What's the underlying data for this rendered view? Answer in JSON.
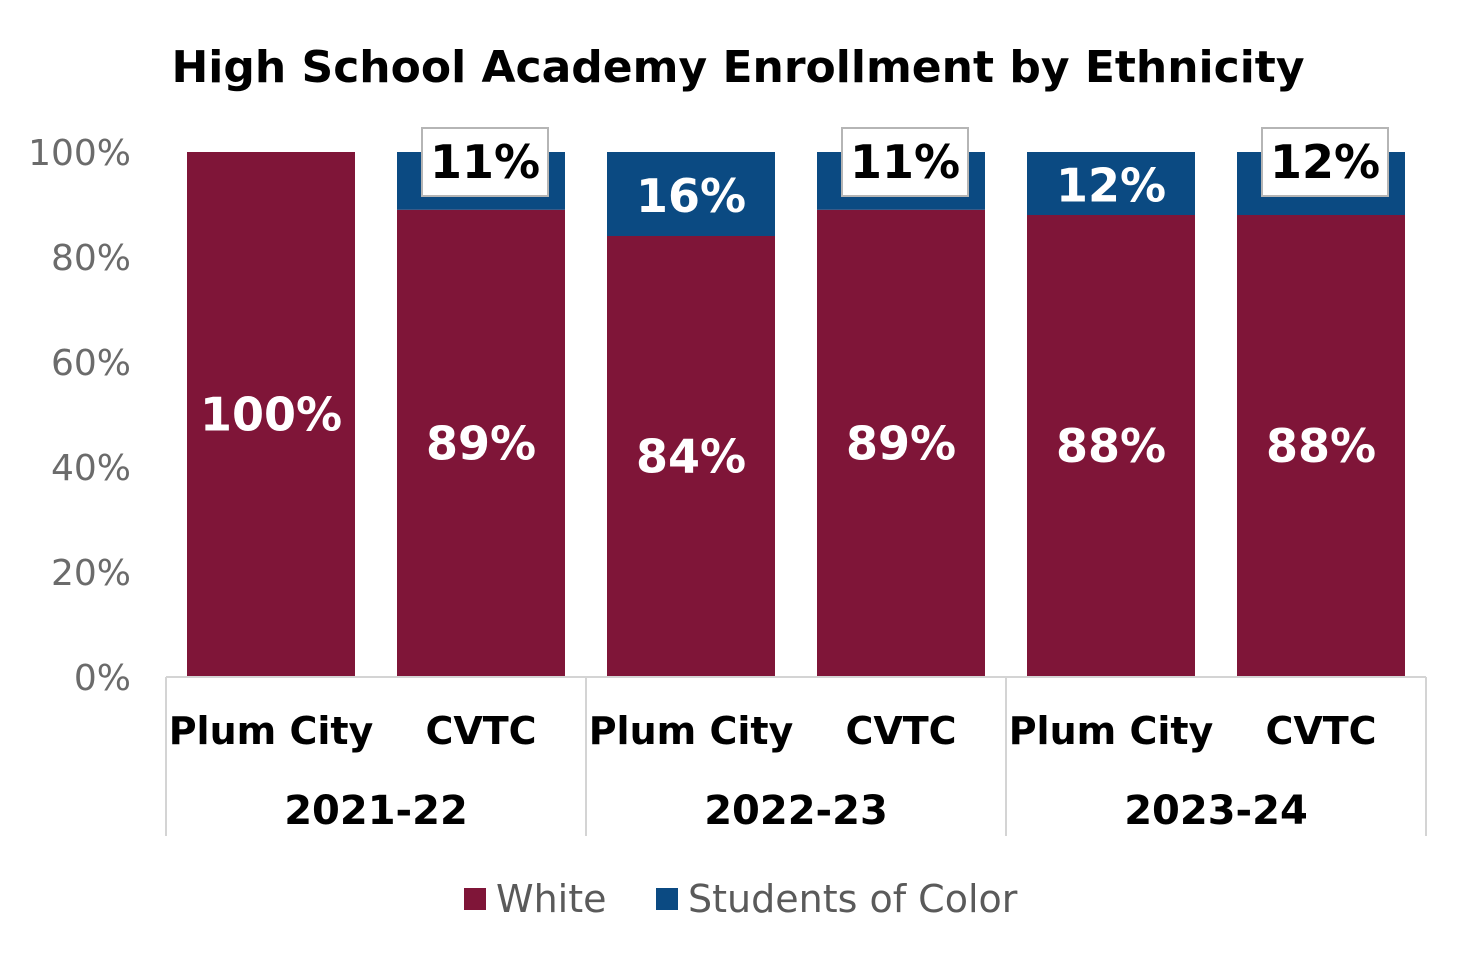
{
  "chart_data": {
    "type": "bar",
    "stacked": true,
    "percent": true,
    "title": "High School Academy Enrollment by Ethnicity",
    "xlabel": "",
    "ylabel": "",
    "ylim": [
      0,
      100
    ],
    "y_ticks": [
      "0%",
      "20%",
      "40%",
      "60%",
      "80%",
      "100%"
    ],
    "y_tick_values": [
      0,
      20,
      40,
      60,
      80,
      100
    ],
    "grid": false,
    "legend_position": "bottom",
    "categories": [
      "Plum City",
      "CVTC",
      "Plum City",
      "CVTC",
      "Plum City",
      "CVTC"
    ],
    "groups": [
      {
        "label": "2021-22",
        "categories": [
          "Plum City",
          "CVTC"
        ]
      },
      {
        "label": "2022-23",
        "categories": [
          "Plum City",
          "CVTC"
        ]
      },
      {
        "label": "2023-24",
        "categories": [
          "Plum City",
          "CVTC"
        ]
      }
    ],
    "series": [
      {
        "name": "White",
        "color": "#7f1538",
        "values": [
          100,
          89,
          84,
          89,
          88,
          88
        ],
        "labels": [
          "100%",
          "89%",
          "84%",
          "89%",
          "88%",
          "88%"
        ]
      },
      {
        "name": "Students of Color",
        "color": "#0b4a82",
        "values": [
          0,
          11,
          16,
          11,
          12,
          12
        ],
        "labels": [
          "",
          "11%",
          "16%",
          "11%",
          "12%",
          "12%"
        ],
        "label_boxed": [
          false,
          true,
          false,
          true,
          false,
          true
        ]
      }
    ]
  }
}
